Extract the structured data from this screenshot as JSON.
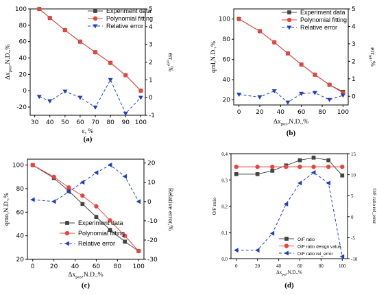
{
  "colors": {
    "experiment": "#444444",
    "fitting": "#e8453c",
    "error": "#1f3fbf"
  },
  "chart_data": [
    {
      "type": "line",
      "panel_label": "(a)",
      "xlabel": "ε, %",
      "ylabel": {
        "base": "Δx",
        "sub": "pos",
        "rest": ",N.D.,%"
      },
      "y2label": {
        "base": "err",
        "sub": "rel",
        "rest": ",%"
      },
      "xlim": [
        27,
        103
      ],
      "ylim": [
        -30,
        100
      ],
      "y2lim": [
        -1,
        5
      ],
      "xticks": [
        30,
        40,
        50,
        60,
        70,
        80,
        90,
        100
      ],
      "yticks": [
        -20,
        0,
        20,
        40,
        60,
        80,
        100
      ],
      "y2ticks": [
        -1,
        0,
        1,
        2,
        3,
        4,
        5
      ],
      "legend_position": "top-right",
      "series": [
        {
          "name": "Experiment data",
          "axis": "left",
          "marker": "square",
          "style": "solid",
          "color": "#444444",
          "x": [
            33,
            40,
            50,
            60,
            70,
            80,
            90,
            100
          ],
          "y": [
            100,
            89,
            74,
            60,
            47,
            34,
            19,
            0
          ]
        },
        {
          "name": "Polynomial fitting",
          "axis": "left",
          "marker": "circle",
          "style": "solid",
          "color": "#e8453c",
          "x": [
            33,
            40,
            50,
            60,
            70,
            80,
            90,
            100
          ],
          "y": [
            100,
            89,
            74,
            60,
            47,
            34,
            19,
            0
          ]
        },
        {
          "name": "Relative error",
          "axis": "right",
          "marker": "triangle-down",
          "style": "dashed",
          "color": "#1f3fbf",
          "x": [
            33,
            40,
            50,
            60,
            70,
            80,
            90,
            100
          ],
          "y": [
            0.05,
            -0.2,
            0.35,
            0.0,
            -0.55,
            1.0,
            -0.9,
            0.0
          ]
        }
      ]
    },
    {
      "type": "line",
      "panel_label": "(b)",
      "xlabel": {
        "base": "Δx",
        "sub": "pos",
        "rest": ",N.D.,%"
      },
      "ylabel": "qml,N.D.,%",
      "y2label": {
        "base": "err",
        "sub": "rel",
        "rest": ",%"
      },
      "xlim": [
        -5,
        105
      ],
      "ylim": [
        15,
        110
      ],
      "y2lim": [
        -0.5,
        5
      ],
      "xticks": [
        0,
        20,
        40,
        60,
        80,
        100
      ],
      "yticks": [
        20,
        40,
        60,
        80,
        100
      ],
      "y2ticks": [
        0,
        1,
        2,
        3,
        4,
        5
      ],
      "legend_position": "top-right",
      "series": [
        {
          "name": "Experiment data",
          "axis": "left",
          "marker": "square",
          "style": "solid",
          "color": "#444444",
          "x": [
            0,
            20,
            34,
            47,
            60,
            73,
            87,
            100
          ],
          "y": [
            100,
            88,
            77,
            66,
            55,
            45,
            35,
            28
          ]
        },
        {
          "name": "Polynomial fitting",
          "axis": "left",
          "marker": "circle",
          "style": "solid",
          "color": "#e8453c",
          "x": [
            0,
            20,
            34,
            47,
            60,
            73,
            87,
            100
          ],
          "y": [
            100,
            88,
            77,
            66,
            55,
            45,
            35,
            27
          ]
        },
        {
          "name": "Relative error",
          "axis": "right",
          "marker": "triangle-down",
          "style": "dashed",
          "color": "#1f3fbf",
          "x": [
            0,
            20,
            34,
            47,
            60,
            73,
            87,
            100
          ],
          "y": [
            0.1,
            -0.05,
            0.3,
            -0.35,
            0.15,
            0.2,
            -0.2,
            0.05
          ]
        }
      ]
    },
    {
      "type": "line",
      "panel_label": "(c)",
      "xlabel": {
        "base": "Δx",
        "sub": "pos",
        "rest": ",N.D.,%"
      },
      "ylabel": "qmo,N.D.,%",
      "y2label": "Relative error,%",
      "xlim": [
        -5,
        105
      ],
      "ylim": [
        20,
        105
      ],
      "y2lim": [
        -30,
        22
      ],
      "xticks": [
        0,
        20,
        40,
        60,
        80,
        100
      ],
      "yticks": [
        20,
        40,
        60,
        80,
        100
      ],
      "y2ticks": [
        -30,
        -20,
        -10,
        0,
        10,
        20
      ],
      "legend_position": "bottom-right",
      "series": [
        {
          "name": "Experiment data",
          "axis": "left",
          "marker": "square",
          "style": "solid",
          "color": "#444444",
          "x": [
            0,
            20,
            34,
            47,
            60,
            73,
            87,
            100
          ],
          "y": [
            100,
            89,
            78,
            67,
            56,
            45,
            35,
            27
          ]
        },
        {
          "name": "Polynomial fitting",
          "axis": "left",
          "marker": "circle",
          "style": "solid",
          "color": "#e8453c",
          "x": [
            0,
            20,
            34,
            47,
            60,
            73,
            87,
            100
          ],
          "y": [
            100,
            90,
            81,
            74,
            65,
            53,
            40,
            27
          ]
        },
        {
          "name": "Relative error",
          "axis": "right",
          "marker": "triangle-left",
          "style": "dashed",
          "color": "#1f3fbf",
          "x": [
            0,
            20,
            34,
            47,
            60,
            73,
            87,
            100
          ],
          "y": [
            1,
            0,
            5,
            10,
            15,
            19,
            13,
            0
          ]
        }
      ]
    },
    {
      "type": "line",
      "panel_label": "(d)",
      "xlabel": {
        "base": "Δx",
        "sub": "pos",
        "rest": ",N.D.,%"
      },
      "ylabel": "O/F ratio",
      "y2label": "O/F ratio rel_error",
      "xlim": [
        -5,
        105
      ],
      "ylim": [
        0,
        0.4
      ],
      "y2lim": [
        -10,
        15
      ],
      "xticks": [
        0,
        20,
        40,
        60,
        80,
        100
      ],
      "yticks": [
        0.0,
        0.1,
        0.2,
        0.3,
        0.4
      ],
      "y2ticks": [
        -10,
        -5,
        0,
        5,
        10,
        15
      ],
      "legend_position": "bottom-right",
      "series": [
        {
          "name": "O/F ratio",
          "axis": "left",
          "marker": "square",
          "style": "solid",
          "color": "#444444",
          "x": [
            0,
            20,
            34,
            47,
            60,
            73,
            87,
            100
          ],
          "y": [
            0.322,
            0.322,
            0.335,
            0.355,
            0.375,
            0.385,
            0.375,
            0.317
          ]
        },
        {
          "name": "O/F ratio design value",
          "axis": "left",
          "marker": "circle",
          "style": "solid",
          "color": "#e8453c",
          "x": [
            0,
            20,
            34,
            47,
            60,
            73,
            87,
            100
          ],
          "y": [
            0.35,
            0.35,
            0.35,
            0.35,
            0.35,
            0.35,
            0.35,
            0.35
          ]
        },
        {
          "name": "O/F ratio rel_error",
          "axis": "right",
          "marker": "triangle-left",
          "style": "dashed",
          "color": "#1f3fbf",
          "x": [
            0,
            20,
            34,
            47,
            60,
            73,
            87,
            100
          ],
          "y": [
            -8,
            -8,
            -4,
            3,
            8,
            10.5,
            8,
            -9.5
          ]
        }
      ]
    }
  ]
}
